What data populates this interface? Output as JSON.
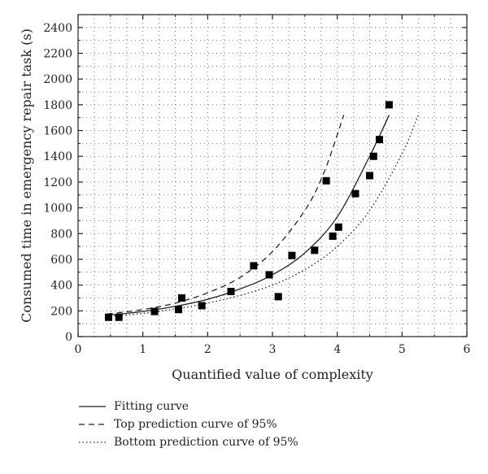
{
  "chart_data": {
    "type": "scatter",
    "xlabel": "Quantified value of complexity",
    "ylabel": "Consumed time in emergency repair task (s)",
    "xlim": [
      0,
      6
    ],
    "ylim": [
      0,
      2500
    ],
    "x_ticks": [
      0,
      1,
      2,
      3,
      4,
      5,
      6
    ],
    "y_ticks": [
      0,
      200,
      400,
      600,
      800,
      1000,
      1200,
      1400,
      1600,
      1800,
      2000,
      2200,
      2400
    ],
    "grid": "dotted",
    "legend_position": "bottom-left",
    "points": {
      "name": "",
      "x": [
        0.47,
        0.63,
        1.18,
        1.55,
        1.6,
        1.91,
        2.36,
        2.71,
        2.95,
        3.09,
        3.3,
        3.65,
        3.83,
        3.93,
        4.02,
        4.28,
        4.5,
        4.56,
        4.65,
        4.8
      ],
      "y": [
        150,
        150,
        195,
        210,
        300,
        240,
        350,
        550,
        480,
        310,
        630,
        670,
        1210,
        780,
        850,
        1110,
        1250,
        1400,
        1530,
        1800
      ]
    },
    "series": [
      {
        "name": "Fitting curve",
        "line_style": "solid",
        "x": [
          0.45,
          1.0,
          1.5,
          2.0,
          2.5,
          3.0,
          3.5,
          4.0,
          4.5,
          4.8
        ],
        "y": [
          165,
          195,
          235,
          290,
          370,
          480,
          650,
          930,
          1400,
          1720
        ]
      },
      {
        "name": "Top prediction curve of 95%",
        "line_style": "dashed",
        "x": [
          0.45,
          1.0,
          1.5,
          2.0,
          2.5,
          3.0,
          3.5,
          3.8,
          4.1
        ],
        "y": [
          175,
          210,
          260,
          340,
          460,
          660,
          980,
          1280,
          1720
        ]
      },
      {
        "name": "Bottom prediction curve of 95%",
        "line_style": "dotted",
        "x": [
          0.45,
          1.0,
          1.5,
          2.0,
          2.5,
          3.0,
          3.5,
          4.0,
          4.5,
          5.0,
          5.25
        ],
        "y": [
          155,
          180,
          215,
          260,
          320,
          400,
          520,
          700,
          980,
          1420,
          1720
        ]
      }
    ],
    "colors": {
      "ink": "#222222",
      "marker": "#000000",
      "grid": "#777777"
    }
  }
}
